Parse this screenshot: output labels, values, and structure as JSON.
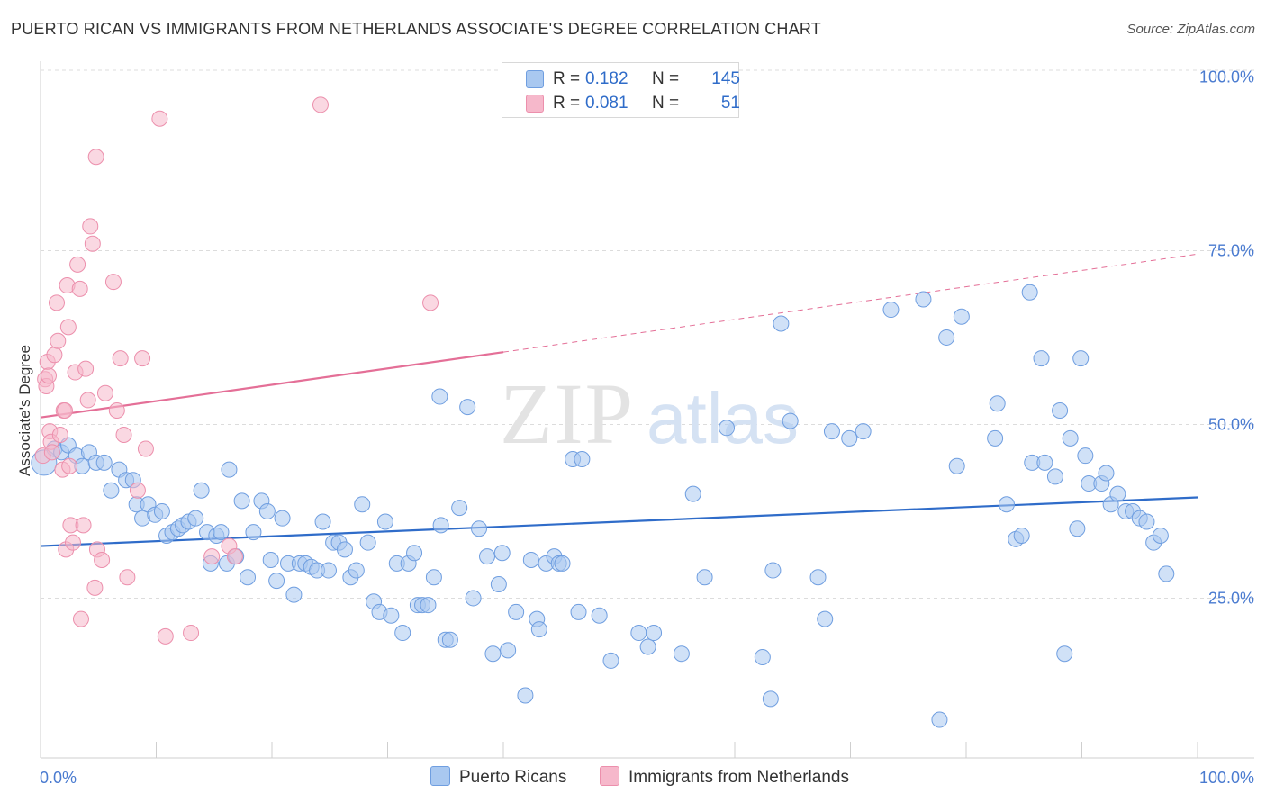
{
  "title": "PUERTO RICAN VS IMMIGRANTS FROM NETHERLANDS ASSOCIATE'S DEGREE CORRELATION CHART",
  "source": "Source: ZipAtlas.com",
  "watermark": {
    "zip": "ZIP",
    "atlas": "atlas"
  },
  "legend_top": {
    "r_label": "R =",
    "n_label": "N =",
    "rows": [
      {
        "r": "0.182",
        "n": "145",
        "color": "#a9c8f0"
      },
      {
        "r": "0.081",
        "n": "51",
        "color": "#f6b8cb"
      }
    ]
  },
  "chart_data": {
    "type": "scatter",
    "title": "PUERTO RICAN VS IMMIGRANTS FROM NETHERLANDS ASSOCIATE'S DEGREE CORRELATION CHART",
    "xlabel": "",
    "ylabel": "Associate's Degree",
    "xlim": [
      0,
      100
    ],
    "ylim": [
      2,
      102
    ],
    "x_tick_labels": [
      "0.0%",
      "100.0%"
    ],
    "y_ticks": [
      {
        "value": 25,
        "label": "25.0%"
      },
      {
        "value": 50,
        "label": "50.0%"
      },
      {
        "value": 75,
        "label": "75.0%"
      },
      {
        "value": 100,
        "label": "100.0%"
      }
    ],
    "grid": "horizontal dashed",
    "legend": "top-center and bottom",
    "series": [
      {
        "name": "Puerto Ricans",
        "color": "#a9c8f0",
        "stroke": "#6f9ee0",
        "trend": {
          "x": [
            0,
            100
          ],
          "y": [
            32.5,
            39.5
          ],
          "color": "#2f6cc9",
          "dashed_from": null
        },
        "points": [
          [
            0.3,
            44.5
          ],
          [
            1.2,
            46.5
          ],
          [
            1.8,
            46
          ],
          [
            2.4,
            47
          ],
          [
            3.1,
            45.5
          ],
          [
            3.6,
            44
          ],
          [
            4.2,
            46
          ],
          [
            4.8,
            44.5
          ],
          [
            5.5,
            44.5
          ],
          [
            6.1,
            40.5
          ],
          [
            6.8,
            43.5
          ],
          [
            7.4,
            42
          ],
          [
            8,
            42
          ],
          [
            8.3,
            38.5
          ],
          [
            8.8,
            36.5
          ],
          [
            9.3,
            38.5
          ],
          [
            9.9,
            37
          ],
          [
            10.5,
            37.5
          ],
          [
            10.9,
            34
          ],
          [
            11.4,
            34.5
          ],
          [
            11.9,
            35
          ],
          [
            12.3,
            35.5
          ],
          [
            12.8,
            36
          ],
          [
            13.4,
            36.5
          ],
          [
            13.9,
            40.5
          ],
          [
            14.4,
            34.5
          ],
          [
            14.7,
            30
          ],
          [
            15.2,
            34
          ],
          [
            15.6,
            34.5
          ],
          [
            16.1,
            30
          ],
          [
            16.3,
            43.5
          ],
          [
            16.9,
            31
          ],
          [
            17.4,
            39
          ],
          [
            17.9,
            28
          ],
          [
            18.4,
            34.5
          ],
          [
            19.1,
            39
          ],
          [
            19.6,
            37.5
          ],
          [
            19.9,
            30.5
          ],
          [
            20.4,
            27.5
          ],
          [
            20.9,
            36.5
          ],
          [
            21.4,
            30
          ],
          [
            21.9,
            25.5
          ],
          [
            22.4,
            30
          ],
          [
            22.9,
            30
          ],
          [
            23.4,
            29.5
          ],
          [
            23.9,
            29
          ],
          [
            24.4,
            36
          ],
          [
            24.9,
            29
          ],
          [
            25.3,
            33
          ],
          [
            25.8,
            33
          ],
          [
            26.3,
            32
          ],
          [
            26.8,
            28
          ],
          [
            27.3,
            29
          ],
          [
            27.8,
            38.5
          ],
          [
            28.3,
            33
          ],
          [
            28.8,
            24.5
          ],
          [
            29.3,
            23
          ],
          [
            29.8,
            36
          ],
          [
            30.3,
            22.5
          ],
          [
            30.8,
            30
          ],
          [
            31.3,
            20
          ],
          [
            31.8,
            30
          ],
          [
            32.3,
            31.5
          ],
          [
            32.6,
            24
          ],
          [
            33,
            24
          ],
          [
            33.5,
            24
          ],
          [
            34,
            28
          ],
          [
            34.5,
            54
          ],
          [
            34.6,
            35.5
          ],
          [
            35,
            19
          ],
          [
            35.4,
            19
          ],
          [
            36.2,
            38
          ],
          [
            36.9,
            52.5
          ],
          [
            37.4,
            25
          ],
          [
            37.9,
            35
          ],
          [
            38.6,
            31
          ],
          [
            39.1,
            17
          ],
          [
            39.6,
            27
          ],
          [
            39.9,
            31.5
          ],
          [
            40.4,
            17.5
          ],
          [
            41.1,
            23
          ],
          [
            41.9,
            11
          ],
          [
            42.4,
            30.5
          ],
          [
            42.9,
            22
          ],
          [
            43.1,
            20.5
          ],
          [
            43.7,
            30
          ],
          [
            44.4,
            31
          ],
          [
            44.8,
            30
          ],
          [
            45.1,
            30
          ],
          [
            46,
            45
          ],
          [
            46.5,
            23
          ],
          [
            46.8,
            45
          ],
          [
            48.3,
            22.5
          ],
          [
            49.3,
            16
          ],
          [
            51.7,
            20
          ],
          [
            52.5,
            18
          ],
          [
            53,
            20
          ],
          [
            55.4,
            17
          ],
          [
            56.4,
            40
          ],
          [
            57.4,
            28
          ],
          [
            59.3,
            49.5
          ],
          [
            62.4,
            16.5
          ],
          [
            63.1,
            10.5
          ],
          [
            63.3,
            29
          ],
          [
            64,
            64.5
          ],
          [
            64.8,
            50.5
          ],
          [
            67.2,
            28
          ],
          [
            67.8,
            22
          ],
          [
            68.4,
            49
          ],
          [
            69.9,
            48
          ],
          [
            71.1,
            49
          ],
          [
            73.5,
            66.5
          ],
          [
            76.3,
            68
          ],
          [
            77.7,
            7.5
          ],
          [
            78.3,
            62.5
          ],
          [
            79.2,
            44
          ],
          [
            79.6,
            65.5
          ],
          [
            82.5,
            48
          ],
          [
            82.7,
            53
          ],
          [
            83.5,
            38.5
          ],
          [
            84.3,
            33.5
          ],
          [
            84.8,
            34
          ],
          [
            85.5,
            69
          ],
          [
            85.7,
            44.5
          ],
          [
            86.5,
            59.5
          ],
          [
            86.8,
            44.5
          ],
          [
            87.7,
            42.5
          ],
          [
            88.1,
            52
          ],
          [
            88.5,
            17
          ],
          [
            89,
            48
          ],
          [
            89.6,
            35
          ],
          [
            89.9,
            59.5
          ],
          [
            90.3,
            45.5
          ],
          [
            90.6,
            41.5
          ],
          [
            91.7,
            41.5
          ],
          [
            92.1,
            43
          ],
          [
            92.5,
            38.5
          ],
          [
            93.1,
            40
          ],
          [
            93.8,
            37.5
          ],
          [
            94.4,
            37.5
          ],
          [
            95,
            36.5
          ],
          [
            95.6,
            36
          ],
          [
            96.2,
            33
          ],
          [
            96.8,
            34
          ],
          [
            97.3,
            28.5
          ]
        ]
      },
      {
        "name": "Immigrants from Netherlands",
        "color": "#f6b8cb",
        "stroke": "#ec8fac",
        "trend": {
          "x": [
            0,
            100
          ],
          "y": [
            51,
            74.5
          ],
          "color": "#e46f97",
          "dashed_from": 40
        },
        "points": [
          [
            0.2,
            45.5
          ],
          [
            0.4,
            56.5
          ],
          [
            0.5,
            55.5
          ],
          [
            0.6,
            59
          ],
          [
            0.7,
            57
          ],
          [
            0.8,
            49
          ],
          [
            0.9,
            47.5
          ],
          [
            1,
            46
          ],
          [
            1.2,
            60
          ],
          [
            1.4,
            67.5
          ],
          [
            1.5,
            62
          ],
          [
            1.7,
            48.5
          ],
          [
            1.9,
            43.5
          ],
          [
            2,
            52
          ],
          [
            2.1,
            52
          ],
          [
            2.2,
            32
          ],
          [
            2.3,
            70
          ],
          [
            2.4,
            64
          ],
          [
            2.5,
            44
          ],
          [
            2.6,
            35.5
          ],
          [
            2.8,
            33
          ],
          [
            3,
            57.5
          ],
          [
            3.2,
            73
          ],
          [
            3.4,
            69.5
          ],
          [
            3.5,
            22
          ],
          [
            3.7,
            35.5
          ],
          [
            3.9,
            58
          ],
          [
            4.1,
            53.5
          ],
          [
            4.3,
            78.5
          ],
          [
            4.5,
            76
          ],
          [
            4.7,
            26.5
          ],
          [
            4.8,
            88.5
          ],
          [
            4.9,
            32
          ],
          [
            5.3,
            30.5
          ],
          [
            5.6,
            54.5
          ],
          [
            6.3,
            70.5
          ],
          [
            6.6,
            52
          ],
          [
            6.9,
            59.5
          ],
          [
            7.2,
            48.5
          ],
          [
            7.5,
            28
          ],
          [
            8.4,
            40.5
          ],
          [
            8.8,
            59.5
          ],
          [
            9.1,
            46.5
          ],
          [
            10.3,
            94
          ],
          [
            10.8,
            19.5
          ],
          [
            13,
            20
          ],
          [
            14.8,
            31
          ],
          [
            16.3,
            32.5
          ],
          [
            16.8,
            31
          ],
          [
            24.2,
            96
          ],
          [
            33.7,
            67.5
          ]
        ]
      }
    ]
  }
}
